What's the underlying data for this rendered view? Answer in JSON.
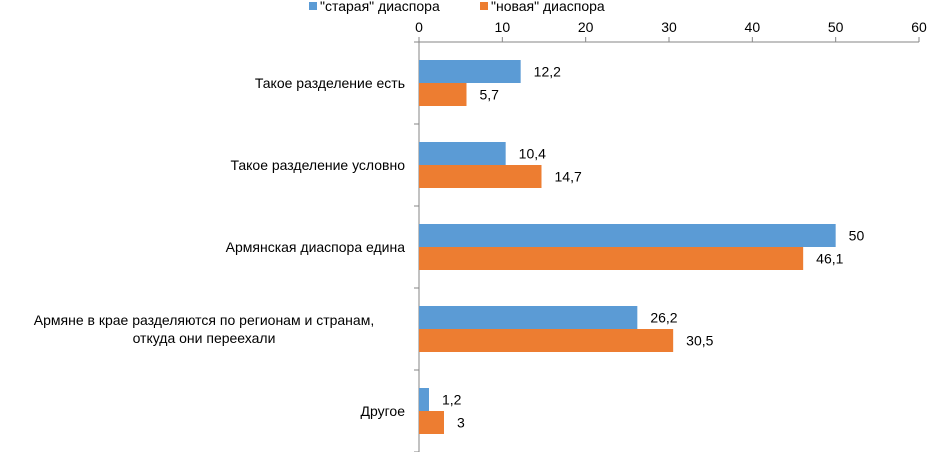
{
  "chart_data": {
    "type": "bar",
    "orientation": "horizontal",
    "title": "",
    "xlabel": "",
    "ylabel": "",
    "xlim": [
      0,
      60
    ],
    "ticks": [
      "0",
      "10",
      "20",
      "30",
      "40",
      "50",
      "60"
    ],
    "tick_values": [
      0,
      10,
      20,
      30,
      40,
      50,
      60
    ],
    "axis_position": "top",
    "grid": false,
    "legend_position": "top",
    "categories": [
      [
        "Такое разделение есть"
      ],
      [
        "Такое разделение условно"
      ],
      [
        "Армянская диаспора едина"
      ],
      [
        "Армяне в крае разделяются по регионам и странам,",
        "откуда они переехали"
      ],
      [
        "Другое"
      ]
    ],
    "series": [
      {
        "name": "\"старая\" диаспора",
        "color": "#5b9bd5",
        "values": [
          12.2,
          10.4,
          50,
          26.2,
          1.2
        ],
        "labels": [
          "12,2",
          "10,4",
          "50",
          "26,2",
          "1,2"
        ]
      },
      {
        "name": "\"новая\" диаспора",
        "color": "#ed7d31",
        "values": [
          5.7,
          14.7,
          46.1,
          30.5,
          3
        ],
        "labels": [
          "5,7",
          "14,7",
          "46,1",
          "30,5",
          "3"
        ]
      }
    ]
  }
}
